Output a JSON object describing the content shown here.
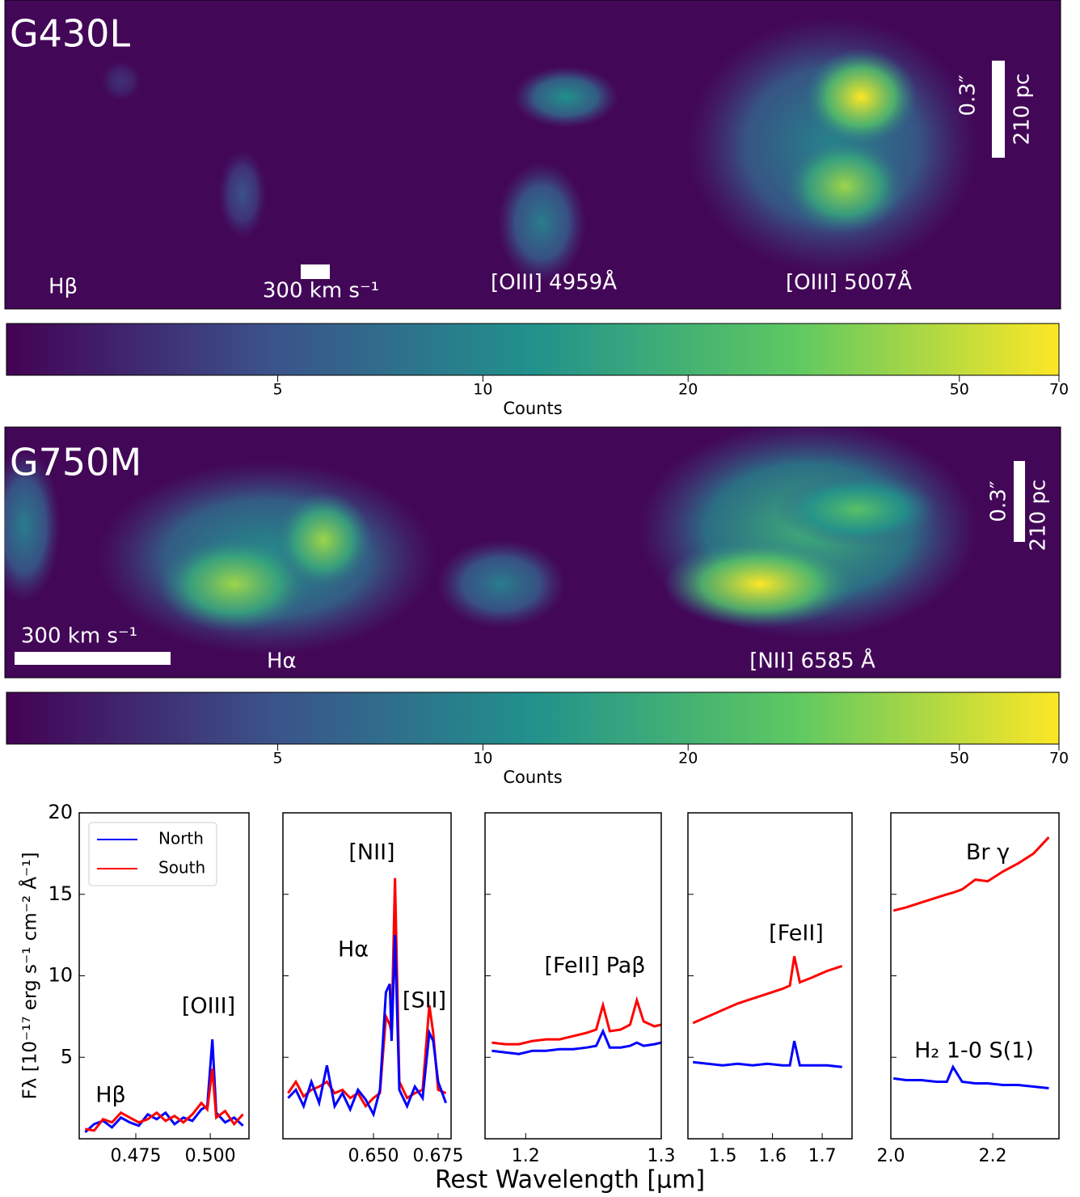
{
  "chart_data": [
    {
      "type": "image",
      "title": "G430L",
      "labels": [
        "Hβ",
        "[OIII] 4959Å",
        "[OIII] 5007Å"
      ],
      "velocity_bar": "300 km s⁻¹",
      "angular_bar": "0.3″",
      "physical_bar": "210 pc",
      "colormap": [
        "#440154",
        "#3b528b",
        "#21918c",
        "#5ec962",
        "#fde725"
      ],
      "colorbar": {
        "label": "Counts",
        "lim": [
          2,
          70
        ],
        "ticks": [
          5,
          10,
          20,
          50,
          70
        ],
        "log": true
      }
    },
    {
      "type": "image",
      "title": "G750M",
      "labels": [
        "Hα",
        "[NII] 6585 Å"
      ],
      "velocity_bar": "300 km s⁻¹",
      "angular_bar": "0.3″",
      "physical_bar": "210 pc",
      "colormap": [
        "#440154",
        "#3b528b",
        "#21918c",
        "#5ec962",
        "#fde725"
      ],
      "colorbar": {
        "label": "Counts",
        "lim": [
          2,
          70
        ],
        "ticks": [
          5,
          10,
          20,
          50,
          70
        ],
        "log": true
      }
    },
    {
      "type": "line",
      "ylabel": "Fλ [10⁻¹⁷ erg s⁻¹ cm⁻² Å⁻¹]",
      "ylim": [
        0,
        20
      ],
      "yticks": [
        5,
        10,
        15,
        20
      ],
      "xlim": [
        0.456,
        0.513
      ],
      "xticks": [
        {
          "value": 0.475,
          "label": "0.475"
        },
        {
          "value": 0.5,
          "label": "0.500"
        }
      ],
      "annotations": [
        "Hβ",
        "[OIII]"
      ],
      "legend": "upper left",
      "x": [
        0.458,
        0.461,
        0.464,
        0.467,
        0.47,
        0.473,
        0.476,
        0.479,
        0.482,
        0.485,
        0.488,
        0.491,
        0.494,
        0.497,
        0.499,
        0.5007,
        0.502,
        0.505,
        0.508,
        0.511
      ],
      "series": [
        {
          "name": "North",
          "color": "#0000ff",
          "values": [
            0.4,
            0.9,
            1.1,
            0.7,
            1.3,
            1.0,
            0.8,
            1.5,
            1.2,
            1.6,
            0.9,
            1.3,
            1.1,
            1.8,
            2.0,
            6.1,
            1.6,
            1.0,
            1.3,
            0.8
          ]
        },
        {
          "name": "South",
          "color": "#ff0000",
          "values": [
            0.6,
            0.5,
            1.2,
            1.0,
            1.6,
            1.3,
            1.0,
            1.2,
            1.6,
            1.1,
            1.4,
            1.0,
            1.5,
            2.2,
            1.8,
            4.3,
            1.3,
            1.7,
            0.9,
            1.5
          ]
        }
      ]
    },
    {
      "type": "line",
      "xlim": [
        0.615,
        0.68
      ],
      "xticks": [
        {
          "value": 0.65,
          "label": "0.650"
        },
        {
          "value": 0.675,
          "label": "0.675"
        }
      ],
      "annotations": [
        "[NII]",
        "Hα",
        "[SII]"
      ],
      "x": [
        0.617,
        0.62,
        0.623,
        0.626,
        0.629,
        0.632,
        0.635,
        0.638,
        0.641,
        0.644,
        0.647,
        0.65,
        0.6525,
        0.6548,
        0.6563,
        0.657,
        0.6583,
        0.66,
        0.663,
        0.666,
        0.669,
        0.6716,
        0.6731,
        0.675,
        0.678
      ],
      "series": [
        {
          "color": "#ff0000",
          "values": [
            2.8,
            3.5,
            2.6,
            3.0,
            3.2,
            3.5,
            2.8,
            3.0,
            2.5,
            2.8,
            2.0,
            2.5,
            2.8,
            7.5,
            7.0,
            6.5,
            16.0,
            3.5,
            2.5,
            2.8,
            3.0,
            8.2,
            6.5,
            3.0,
            2.8
          ]
        },
        {
          "color": "#0000ff",
          "values": [
            2.5,
            3.0,
            2.0,
            3.5,
            2.2,
            4.5,
            2.0,
            2.8,
            1.8,
            3.0,
            2.4,
            1.5,
            3.0,
            9.0,
            9.5,
            6.0,
            12.5,
            3.0,
            2.0,
            3.2,
            2.5,
            6.5,
            6.0,
            3.5,
            2.2
          ]
        }
      ]
    },
    {
      "type": "line",
      "xlim": [
        1.17,
        1.3
      ],
      "xticks": [
        1.2,
        1.3
      ],
      "xlabel": "Rest Wavelength [μm]",
      "annotations": [
        "[FeII] Paβ"
      ],
      "x": [
        1.175,
        1.185,
        1.195,
        1.205,
        1.215,
        1.225,
        1.235,
        1.245,
        1.252,
        1.257,
        1.262,
        1.27,
        1.277,
        1.282,
        1.287,
        1.295,
        1.3
      ],
      "series": [
        {
          "color": "#ff0000",
          "values": [
            5.9,
            5.8,
            5.8,
            6.0,
            6.1,
            6.1,
            6.3,
            6.5,
            6.7,
            8.2,
            6.6,
            6.7,
            7.0,
            8.5,
            7.2,
            6.9,
            7.0
          ]
        },
        {
          "color": "#0000ff",
          "values": [
            5.4,
            5.3,
            5.2,
            5.4,
            5.4,
            5.5,
            5.5,
            5.6,
            5.7,
            6.6,
            5.6,
            5.6,
            5.7,
            5.9,
            5.7,
            5.8,
            5.9
          ]
        }
      ]
    },
    {
      "type": "line",
      "xlim": [
        1.43,
        1.76
      ],
      "xticks": [
        1.5,
        1.6,
        1.7
      ],
      "annotations": [
        "[FeII]"
      ],
      "x": [
        1.44,
        1.47,
        1.5,
        1.53,
        1.56,
        1.59,
        1.62,
        1.635,
        1.644,
        1.655,
        1.68,
        1.71,
        1.74
      ],
      "series": [
        {
          "color": "#ff0000",
          "values": [
            7.1,
            7.5,
            7.9,
            8.3,
            8.6,
            8.9,
            9.2,
            9.4,
            11.2,
            9.6,
            9.9,
            10.3,
            10.6
          ]
        },
        {
          "color": "#0000ff",
          "values": [
            4.7,
            4.6,
            4.5,
            4.6,
            4.5,
            4.6,
            4.5,
            4.5,
            6.0,
            4.5,
            4.5,
            4.5,
            4.4
          ]
        }
      ]
    },
    {
      "type": "line",
      "xlim": [
        2.0,
        2.33
      ],
      "xticks": [
        {
          "value": 2.0,
          "label": "2.0"
        },
        2.2
      ],
      "annotations": [
        "Br γ",
        "H₂ 1-0 S(1)"
      ],
      "x": [
        2.005,
        2.03,
        2.06,
        2.09,
        2.11,
        2.122,
        2.14,
        2.166,
        2.19,
        2.22,
        2.25,
        2.28,
        2.31
      ],
      "series": [
        {
          "color": "#ff0000",
          "values": [
            14.0,
            14.2,
            14.5,
            14.8,
            15.0,
            15.1,
            15.3,
            15.9,
            15.8,
            16.4,
            16.9,
            17.5,
            18.5
          ]
        },
        {
          "color": "#0000ff",
          "values": [
            3.7,
            3.6,
            3.6,
            3.5,
            3.5,
            4.4,
            3.5,
            3.4,
            3.4,
            3.3,
            3.3,
            3.2,
            3.1
          ]
        }
      ]
    }
  ]
}
